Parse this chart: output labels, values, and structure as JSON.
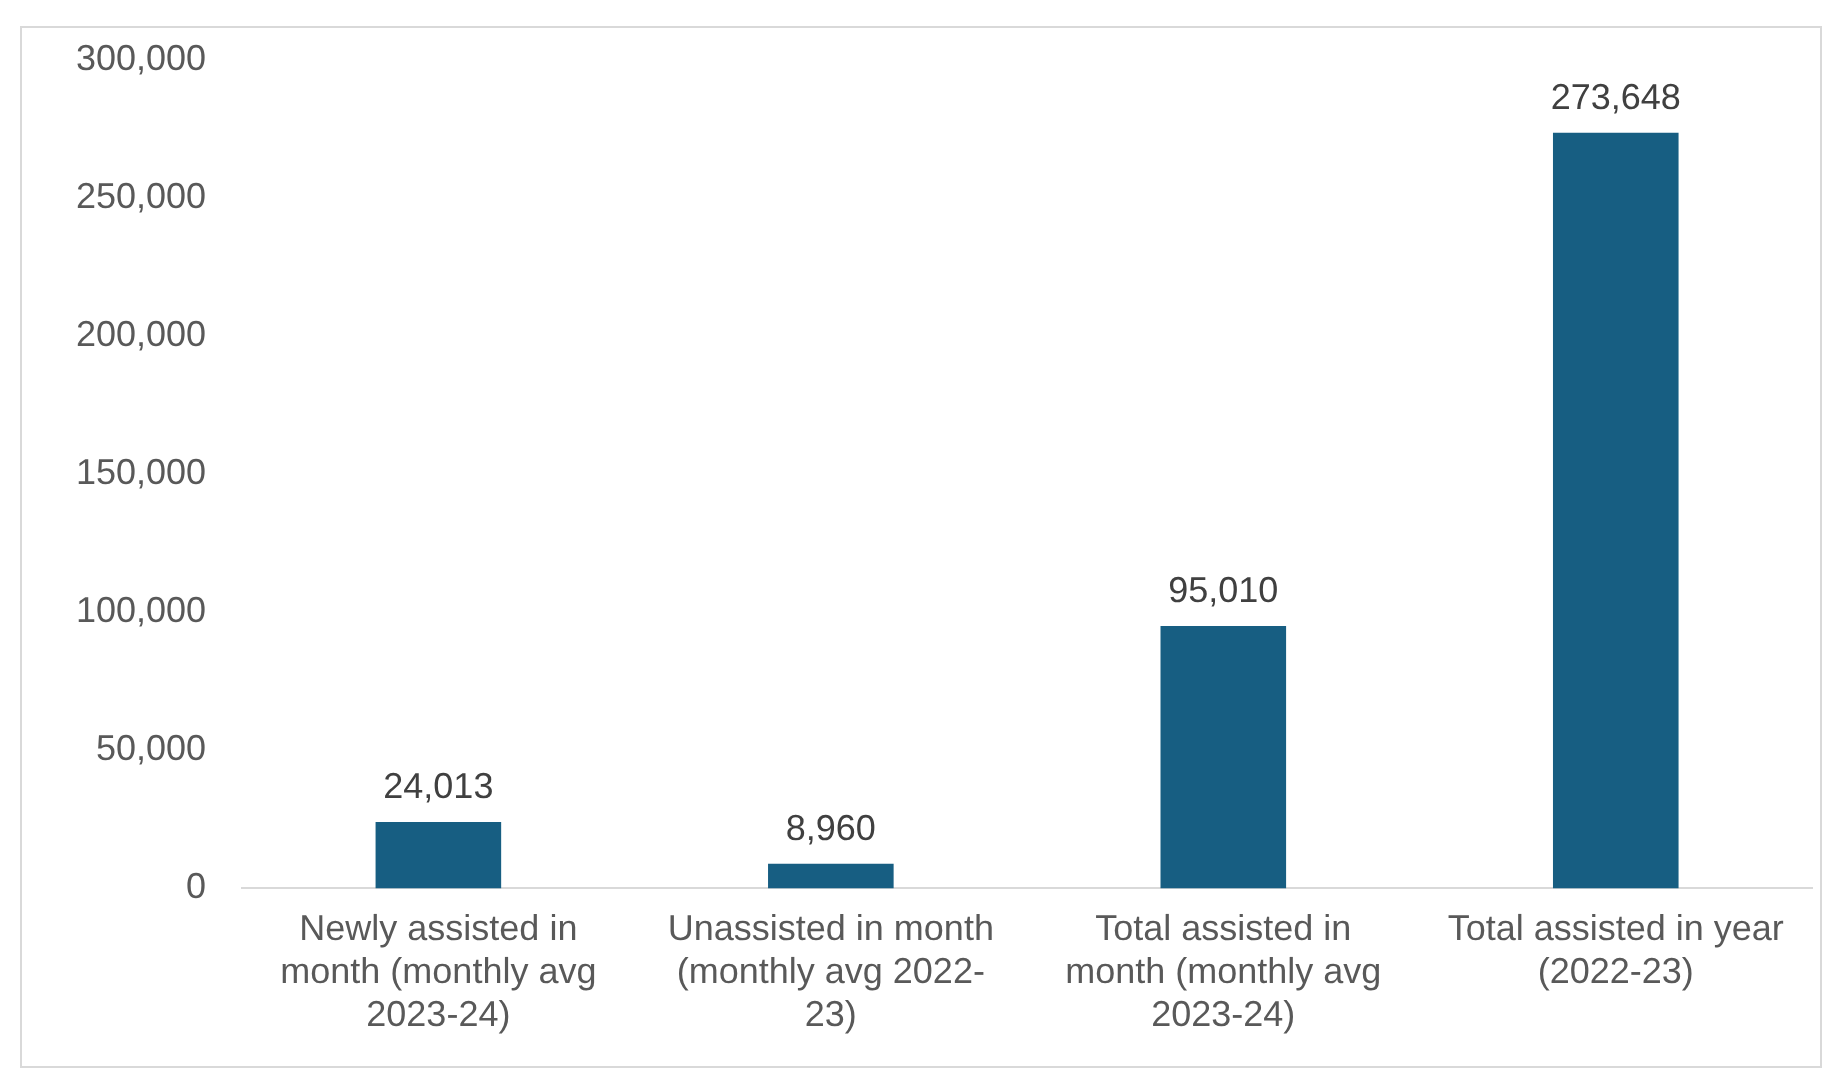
{
  "chart_data": {
    "type": "bar",
    "categories": [
      "Newly assisted in month (monthly avg 2023-24)",
      "Unassisted in month (monthly avg 2022-23)",
      "Total assisted in month (monthly avg 2023-24)",
      "Total assisted in year (2022-23)"
    ],
    "values": [
      24013,
      8960,
      95010,
      273648
    ],
    "value_labels": [
      "24,013",
      "8,960",
      "95,010",
      "273,648"
    ],
    "color": "#175e82",
    "ylim": [
      0,
      300000
    ],
    "yticks": [
      {
        "value": 0,
        "label": "0"
      },
      {
        "value": 50000,
        "label": "50,000"
      },
      {
        "value": 100000,
        "label": "100,000"
      },
      {
        "value": 150000,
        "label": "150,000"
      },
      {
        "value": 200000,
        "label": "200,000"
      },
      {
        "value": 250000,
        "label": "250,000"
      },
      {
        "value": 300000,
        "label": "300,000"
      }
    ],
    "grid": false,
    "legend": false
  }
}
